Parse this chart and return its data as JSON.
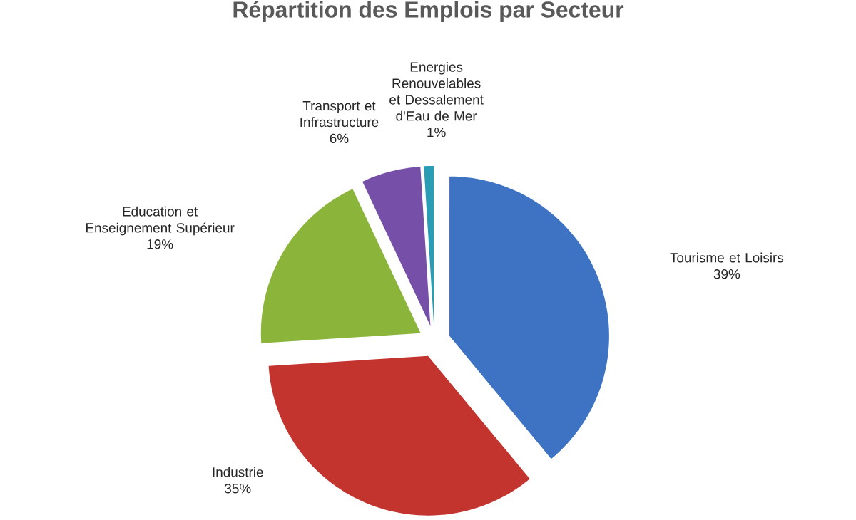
{
  "chart_data": {
    "type": "pie",
    "title": "Répartition des Emplois par Secteur",
    "categories": [
      "Tourisme et Loisirs",
      "Industrie",
      "Education et Enseignement Supérieur",
      "Transport et Infrastructure",
      "Energies Renouvelables et Dessalement d'Eau de Mer"
    ],
    "values": [
      39,
      35,
      19,
      6,
      1
    ],
    "value_labels": [
      "39%",
      "35%",
      "19%",
      "6%",
      "1%"
    ],
    "colors": [
      "#3e72c2",
      "#c4342f",
      "#8ab53a",
      "#7650a8",
      "#2a9db5"
    ],
    "legend": false
  }
}
